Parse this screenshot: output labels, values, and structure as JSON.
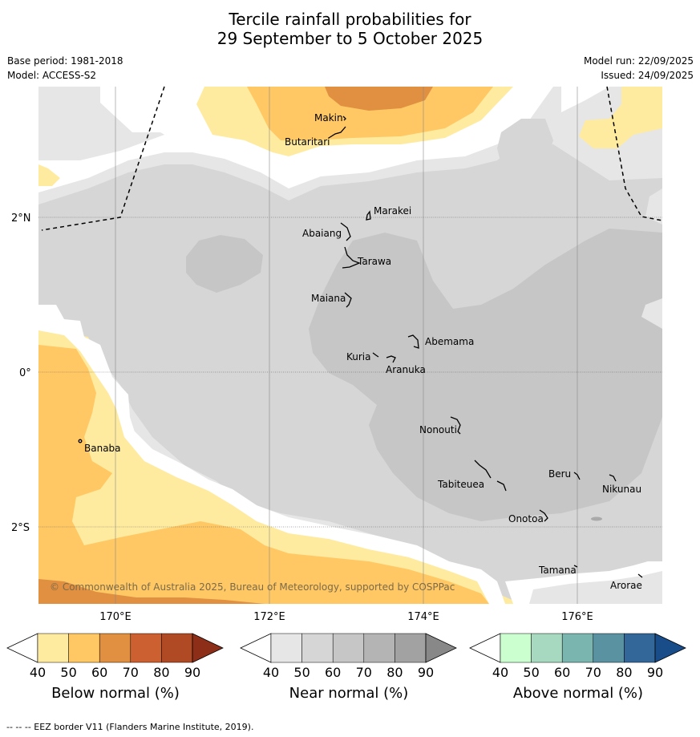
{
  "title_line1": "Tercile rainfall probabilities for",
  "title_line2": "29 September to 5 October 2025",
  "base_period": "Base period: 1981-2018",
  "model": "Model: ACCESS-S2",
  "model_run": "Model run: 22/09/2025",
  "issued": "Issued: 24/09/2025",
  "copyright": "© Commonwealth of Australia 2025, Bureau of Meteorology, supported by COSPPac",
  "footnote": "--  --  -- EEZ border V11 (Flanders Marine Institute, 2019).",
  "lat_labels": [
    "2°N",
    "0°",
    "2°S"
  ],
  "lon_labels": [
    "170°E",
    "172°E",
    "174°E",
    "176°E"
  ],
  "islands": [
    "Makin",
    "Butaritari",
    "Marakei",
    "Abaiang",
    "Tarawa",
    "Maiana",
    "Abemama",
    "Kuria",
    "Aranuka",
    "Nonouti",
    "Banaba",
    "Tabiteuea",
    "Beru",
    "Nikunau",
    "Onotoa",
    "Tamana",
    "Arorae"
  ],
  "colorbars": [
    {
      "label": "Below normal (%)",
      "ticks": [
        "40",
        "50",
        "60",
        "70",
        "80",
        "90"
      ],
      "colors": [
        "#ffffff",
        "#ffeb9f",
        "#ffc864",
        "#e09040",
        "#cc6030",
        "#b04a25",
        "#8c2e18"
      ]
    },
    {
      "label": "Near normal (%)",
      "ticks": [
        "40",
        "50",
        "60",
        "70",
        "80",
        "90"
      ],
      "colors": [
        "#ffffff",
        "#e6e6e6",
        "#d6d6d6",
        "#c6c6c6",
        "#b4b4b4",
        "#a2a2a2",
        "#888888"
      ]
    },
    {
      "label": "Above normal (%)",
      "ticks": [
        "40",
        "50",
        "60",
        "70",
        "80",
        "90"
      ],
      "colors": [
        "#ffffff",
        "#ccffd0",
        "#a6d9c0",
        "#7ab5b0",
        "#5a92a2",
        "#336699",
        "#184d8a"
      ]
    }
  ]
}
